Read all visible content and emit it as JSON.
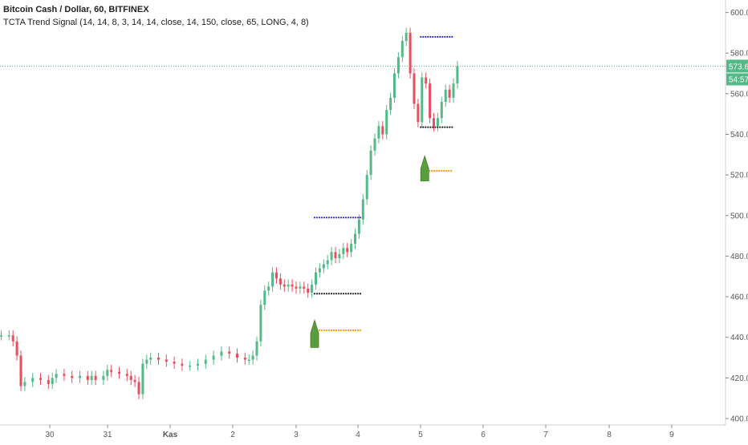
{
  "header": {
    "title": "Bitcoin Cash / Dollar, 60, BITFINEX",
    "indicator": "TCTA Trend Signal (14, 14, 8, 3, 14, 14, close, 14, 150, close, 65, LONG, 4, 8)"
  },
  "colors": {
    "up": "#53b987",
    "down": "#eb4d5c",
    "price_line": "#53b987",
    "buy_signal": "#5a9e3d",
    "stop_level": "#222222",
    "target_level": "#2b2bd6",
    "entry_level": "#ff9800",
    "axis_text": "#555555"
  },
  "chart_data": {
    "type": "candlestick",
    "y_ticks": [
      "400.0",
      "420.0",
      "440.0",
      "460.0",
      "480.0",
      "500.0",
      "520.0",
      "540.0",
      "560.0",
      "580.0",
      "600.0"
    ],
    "ylim": [
      400,
      603
    ],
    "x_ticks": [
      "30",
      "31",
      "Kas",
      "2",
      "3",
      "4",
      "5",
      "6",
      "7",
      "8",
      "9"
    ],
    "last_price_label": "573.6",
    "countdown_label": "54:57",
    "last_price": 573.6,
    "series": [
      {
        "x": 0,
        "close": 441
      },
      {
        "x": 2,
        "close": 441
      },
      {
        "x": 3,
        "close": 438
      },
      {
        "x": 4,
        "close": 431
      },
      {
        "x": 5,
        "close": 416
      },
      {
        "x": 6,
        "close": 418
      },
      {
        "x": 8,
        "close": 420
      },
      {
        "x": 10,
        "close": 419
      },
      {
        "x": 12,
        "close": 417
      },
      {
        "x": 13,
        "close": 420
      },
      {
        "x": 14,
        "close": 422
      },
      {
        "x": 16,
        "close": 421
      },
      {
        "x": 18,
        "close": 420
      },
      {
        "x": 20,
        "close": 421
      },
      {
        "x": 22,
        "close": 419
      },
      {
        "x": 23,
        "close": 421
      },
      {
        "x": 24,
        "close": 419
      },
      {
        "x": 26,
        "close": 421
      },
      {
        "x": 27,
        "close": 424
      },
      {
        "x": 28,
        "close": 423
      },
      {
        "x": 30,
        "close": 422
      },
      {
        "x": 32,
        "close": 421
      },
      {
        "x": 33,
        "close": 419
      },
      {
        "x": 34,
        "close": 418
      },
      {
        "x": 35,
        "close": 412
      },
      {
        "x": 36,
        "close": 427
      },
      {
        "x": 37,
        "close": 429
      },
      {
        "x": 38,
        "close": 430
      },
      {
        "x": 40,
        "close": 429
      },
      {
        "x": 42,
        "close": 428
      },
      {
        "x": 44,
        "close": 427
      },
      {
        "x": 46,
        "close": 426
      },
      {
        "x": 48,
        "close": 426
      },
      {
        "x": 50,
        "close": 427
      },
      {
        "x": 52,
        "close": 429
      },
      {
        "x": 54,
        "close": 431
      },
      {
        "x": 56,
        "close": 433
      },
      {
        "x": 58,
        "close": 432
      },
      {
        "x": 60,
        "close": 430
      },
      {
        "x": 62,
        "close": 429
      },
      {
        "x": 63,
        "close": 429
      },
      {
        "x": 64,
        "close": 431
      },
      {
        "x": 65,
        "close": 438
      },
      {
        "x": 66,
        "close": 456
      },
      {
        "x": 67,
        "close": 463
      },
      {
        "x": 68,
        "close": 465
      },
      {
        "x": 69,
        "close": 472
      },
      {
        "x": 70,
        "close": 469
      },
      {
        "x": 71,
        "close": 466
      },
      {
        "x": 72,
        "close": 465
      },
      {
        "x": 73,
        "close": 466
      },
      {
        "x": 74,
        "close": 465
      },
      {
        "x": 75,
        "close": 464
      },
      {
        "x": 76,
        "close": 465
      },
      {
        "x": 77,
        "close": 464
      },
      {
        "x": 78,
        "close": 462
      },
      {
        "x": 79,
        "close": 466
      },
      {
        "x": 80,
        "close": 472
      },
      {
        "x": 81,
        "close": 474
      },
      {
        "x": 82,
        "close": 476
      },
      {
        "x": 83,
        "close": 478
      },
      {
        "x": 84,
        "close": 482
      },
      {
        "x": 85,
        "close": 479
      },
      {
        "x": 86,
        "close": 481
      },
      {
        "x": 87,
        "close": 484
      },
      {
        "x": 88,
        "close": 482
      },
      {
        "x": 89,
        "close": 486
      },
      {
        "x": 90,
        "close": 491
      },
      {
        "x": 91,
        "close": 498
      },
      {
        "x": 92,
        "close": 508
      },
      {
        "x": 93,
        "close": 520
      },
      {
        "x": 94,
        "close": 532
      },
      {
        "x": 95,
        "close": 538
      },
      {
        "x": 96,
        "close": 544
      },
      {
        "x": 97,
        "close": 540
      },
      {
        "x": 98,
        "close": 552
      },
      {
        "x": 99,
        "close": 558
      },
      {
        "x": 100,
        "close": 570
      },
      {
        "x": 101,
        "close": 578
      },
      {
        "x": 102,
        "close": 586
      },
      {
        "x": 103,
        "close": 590
      },
      {
        "x": 104,
        "close": 570
      },
      {
        "x": 105,
        "close": 555
      },
      {
        "x": 106,
        "close": 546
      },
      {
        "x": 107,
        "close": 568
      },
      {
        "x": 108,
        "close": 565
      },
      {
        "x": 109,
        "close": 548
      },
      {
        "x": 110,
        "close": 544
      },
      {
        "x": 111,
        "close": 548
      },
      {
        "x": 112,
        "close": 556
      },
      {
        "x": 113,
        "close": 562
      },
      {
        "x": 114,
        "close": 558
      },
      {
        "x": 115,
        "close": 565
      },
      {
        "x": 116,
        "close": 573.6
      }
    ],
    "levels": [
      {
        "name": "target",
        "y": 588.0,
        "x_start": 107,
        "x_end": 115
      },
      {
        "name": "stop",
        "y": 543.5,
        "x_start": 107,
        "x_end": 115
      },
      {
        "name": "entry",
        "y": 522.0,
        "x_start": 108,
        "x_end": 115
      },
      {
        "name": "target",
        "y": 499.0,
        "x_start": 80,
        "x_end": 92
      },
      {
        "name": "stop",
        "y": 461.5,
        "x_start": 80,
        "x_end": 92
      },
      {
        "name": "entry",
        "y": 443.5,
        "x_start": 80,
        "x_end": 92
      }
    ],
    "signals": [
      {
        "type": "LONG",
        "x": 80,
        "top": 446,
        "bottom": 435
      },
      {
        "type": "LONG",
        "x": 108,
        "top": 527,
        "bottom": 517
      }
    ]
  }
}
